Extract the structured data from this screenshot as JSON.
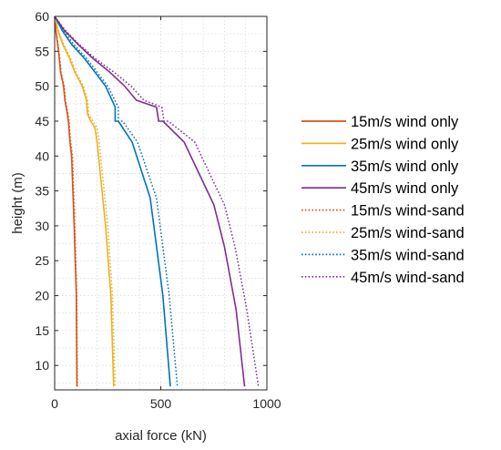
{
  "chart_data": {
    "type": "line",
    "xlabel": "axial force (kN)",
    "ylabel": "height (m)",
    "xlim": [
      0,
      1000
    ],
    "ylim": [
      6.5,
      60
    ],
    "xticks": [
      0,
      500,
      1000
    ],
    "yticks": [
      10,
      15,
      20,
      25,
      30,
      35,
      40,
      45,
      50,
      55,
      60
    ],
    "grid": true,
    "legend_position": "right-outside",
    "series": [
      {
        "name": "15m/s wind only",
        "color": "#D95319",
        "style": "solid",
        "x": [
          0,
          5,
          14,
          22,
          28,
          42,
          48,
          60,
          65,
          72,
          80,
          92,
          102,
          105
        ],
        "y": [
          60,
          58,
          56,
          54,
          52,
          50,
          48,
          46,
          45,
          42,
          40,
          30,
          20,
          7
        ]
      },
      {
        "name": "25m/s wind only",
        "color": "#EDB120",
        "style": "solid",
        "x": [
          0,
          15,
          38,
          70,
          95,
          130,
          150,
          155,
          170,
          190,
          200,
          240,
          265,
          278
        ],
        "y": [
          60,
          58,
          56,
          54,
          52,
          50,
          48,
          46,
          45,
          44,
          42,
          30,
          20,
          7
        ]
      },
      {
        "name": "35m/s wind only",
        "color": "#0072BD",
        "style": "solid",
        "x": [
          0,
          35,
          80,
          140,
          190,
          240,
          285,
          285,
          300,
          365,
          450,
          510,
          545
        ],
        "y": [
          60,
          58,
          56,
          54,
          52,
          50,
          47,
          45,
          45,
          42,
          34,
          20,
          7
        ]
      },
      {
        "name": "45m/s wind only",
        "color": "#7E2F8E",
        "style": "solid",
        "x": [
          0,
          45,
          110,
          180,
          260,
          330,
          385,
          480,
          490,
          510,
          610,
          750,
          800,
          855,
          895
        ],
        "y": [
          60,
          58,
          56,
          54,
          52,
          50,
          48,
          47,
          45,
          45,
          42,
          33,
          27,
          18,
          7
        ]
      },
      {
        "name": "15m/s wind-sand",
        "color": "#D95319",
        "style": "dotted",
        "x": [
          0,
          6,
          16,
          24,
          30,
          45,
          51,
          63,
          68,
          75,
          84,
          95,
          104,
          107
        ],
        "y": [
          60,
          58,
          56,
          54,
          52,
          50,
          48,
          46,
          45,
          42,
          40,
          30,
          20,
          7
        ]
      },
      {
        "name": "25m/s wind-sand",
        "color": "#EDB120",
        "style": "dotted",
        "x": [
          0,
          17,
          42,
          75,
          100,
          135,
          155,
          160,
          180,
          200,
          210,
          250,
          272,
          285
        ],
        "y": [
          60,
          58,
          56,
          54,
          52,
          50,
          48,
          46,
          45,
          44,
          42,
          30,
          20,
          7
        ]
      },
      {
        "name": "35m/s wind-sand",
        "color": "#0072BD",
        "style": "dotted",
        "x": [
          0,
          40,
          90,
          150,
          200,
          250,
          300,
          300,
          320,
          390,
          480,
          540,
          578
        ],
        "y": [
          60,
          58,
          56,
          54,
          52,
          50,
          47,
          45,
          45,
          42,
          34,
          20,
          7
        ]
      },
      {
        "name": "45m/s wind-sand",
        "color": "#7E2F8E",
        "style": "dotted",
        "x": [
          0,
          50,
          115,
          190,
          280,
          360,
          420,
          505,
          515,
          535,
          660,
          800,
          850,
          905,
          960
        ],
        "y": [
          60,
          58,
          56,
          54,
          52,
          50,
          48,
          47,
          45,
          45,
          42,
          33,
          27,
          18,
          7
        ]
      }
    ]
  }
}
